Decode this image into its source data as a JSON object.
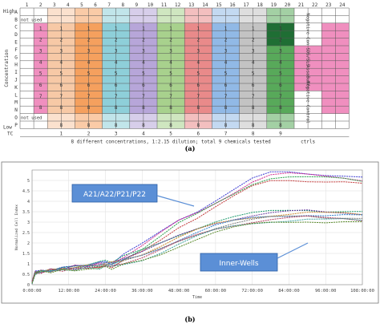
{
  "figure_a": {
    "panel_label": "(a)",
    "row_axis": {
      "high": "High",
      "low": "Low",
      "title": "Concentration"
    },
    "col_numbers": [
      "1",
      "2",
      "3",
      "4",
      "5",
      "6",
      "7",
      "8",
      "9",
      "10",
      "11",
      "12",
      "13",
      "14",
      "15",
      "16",
      "17",
      "18",
      "19",
      "20",
      "21",
      "22",
      "23",
      "24"
    ],
    "row_letters": [
      "A",
      "B",
      "C",
      "D",
      "E",
      "F",
      "G",
      "H",
      "I",
      "J",
      "K",
      "L",
      "M",
      "N",
      "O",
      "P"
    ],
    "tc_label": "TC",
    "chem_numbers": [
      "1",
      "2",
      "3",
      "4",
      "5",
      "6",
      "7",
      "8",
      "9"
    ],
    "footer_text": "8 different concentrations, 1:2.15 dilution; total 9 chemicals tested",
    "footer_ctrls": "ctrls",
    "not_used": "not used",
    "conc_values": [
      "1",
      "2",
      "3",
      "4",
      "5",
      "6",
      "7",
      "8"
    ],
    "pair_colors": [
      "#f7c9a6",
      "#f5a05e",
      "#8ecfd9",
      "#b7a6d9",
      "#a8d18d",
      "#e98a8a",
      "#91b9e6",
      "#c3c3c3",
      "#58a95a"
    ],
    "side_colors": [
      "#ffffff",
      "#f08fbf",
      "#f08fbf",
      "#ffffff"
    ],
    "side_labels": [
      "Negative Control",
      "SDS/SLS",
      "AssaBuffe r",
      "Negative Control"
    ],
    "col2_labels": [
      "1",
      "2",
      "3",
      "4",
      "5",
      "6",
      "7",
      "8"
    ]
  },
  "figure_b": {
    "panel_label": "(b)",
    "callout_top": "A21/A22/P21/P22",
    "callout_bottom": "Inner-Wells",
    "y_axis_label": "Normalized Cell Index",
    "x_axis_label": "Time"
  },
  "chart_data": {
    "type": "line",
    "xlabel": "Time",
    "ylabel": "Normalized Cell Index",
    "x_ticks": [
      "0:00:00",
      "12:00:00",
      "24:00:00",
      "36:00:00",
      "48:00:00",
      "60:00:00",
      "72:00:00",
      "84:00:00",
      "96:00:00",
      "108:00:00"
    ],
    "x_range_hours": [
      0,
      108
    ],
    "y_ticks": [
      "0",
      "0.5",
      "1",
      "1.5",
      "2",
      "2.5",
      "3",
      "3.5",
      "4",
      "4.5",
      "5"
    ],
    "ylim": [
      0,
      5.5
    ],
    "grid": true,
    "series_groups": [
      {
        "group": "A21/A22/P21/P22",
        "colors": [
          "#3b3bd1",
          "#d12a8e",
          "#2aa14a",
          "#c23a3a"
        ],
        "x": [
          0,
          1,
          3,
          6,
          10,
          14,
          18,
          22,
          24,
          26,
          30,
          36,
          42,
          48,
          54,
          60,
          66,
          72,
          78,
          84,
          90,
          96,
          102,
          108
        ],
        "values": [
          0.1,
          0.6,
          0.65,
          0.7,
          0.78,
          0.85,
          0.9,
          0.95,
          1.0,
          0.95,
          1.3,
          1.8,
          2.4,
          3.0,
          3.4,
          3.9,
          4.4,
          4.9,
          5.2,
          5.25,
          5.2,
          5.15,
          5.1,
          5.0
        ]
      },
      {
        "group": "Inner-Wells",
        "colors": [
          "#1d9a6c",
          "#6b3fa0",
          "#c9862b",
          "#2b7bc9",
          "#7a7a7a",
          "#b03a5b",
          "#3aa0a0",
          "#5a8a2b"
        ],
        "x": [
          0,
          1,
          3,
          6,
          10,
          14,
          18,
          22,
          24,
          26,
          30,
          36,
          42,
          48,
          54,
          60,
          66,
          72,
          78,
          84,
          90,
          96,
          102,
          108
        ],
        "values": [
          0.1,
          0.55,
          0.62,
          0.68,
          0.74,
          0.8,
          0.86,
          0.92,
          1.0,
          0.96,
          1.15,
          1.4,
          1.75,
          2.15,
          2.5,
          2.8,
          3.0,
          3.15,
          3.25,
          3.3,
          3.35,
          3.3,
          3.3,
          3.25
        ]
      }
    ]
  }
}
